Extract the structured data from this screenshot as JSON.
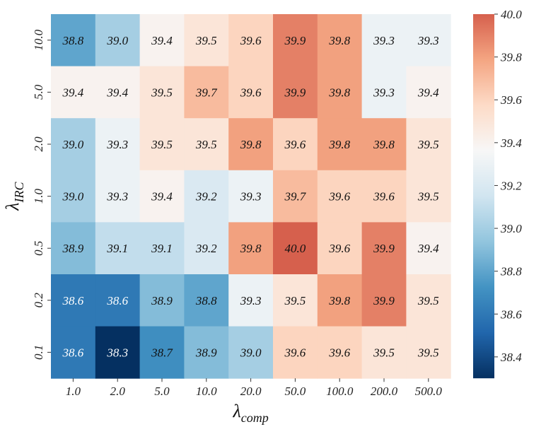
{
  "chart_data": {
    "type": "heatmap",
    "xlabel": "λ",
    "xlabel_sub": "comp",
    "ylabel": "λ",
    "ylabel_sub": "IRC",
    "x_categories": [
      "1.0",
      "2.0",
      "5.0",
      "10.0",
      "20.0",
      "50.0",
      "100.0",
      "200.0",
      "500.0"
    ],
    "y_categories": [
      "10.0",
      "5.0",
      "2.0",
      "1.0",
      "0.5",
      "0.2",
      "0.1"
    ],
    "values": [
      [
        38.8,
        39.0,
        39.4,
        39.5,
        39.6,
        39.9,
        39.8,
        39.3,
        39.3
      ],
      [
        39.4,
        39.4,
        39.5,
        39.7,
        39.6,
        39.9,
        39.8,
        39.3,
        39.4
      ],
      [
        39.0,
        39.3,
        39.5,
        39.5,
        39.8,
        39.6,
        39.8,
        39.8,
        39.5
      ],
      [
        39.0,
        39.3,
        39.4,
        39.2,
        39.3,
        39.7,
        39.6,
        39.6,
        39.5
      ],
      [
        38.9,
        39.1,
        39.1,
        39.2,
        39.8,
        40.0,
        39.6,
        39.9,
        39.4
      ],
      [
        38.6,
        38.6,
        38.9,
        38.8,
        39.3,
        39.5,
        39.8,
        39.9,
        39.5
      ],
      [
        38.6,
        38.3,
        38.7,
        38.9,
        39.0,
        39.6,
        39.6,
        39.5,
        39.5
      ]
    ],
    "colormap": "RdBu_r",
    "vmin": 38.3,
    "vmax": 40.0,
    "colorbar_ticks": [
      "38.4",
      "38.6",
      "38.8",
      "39.0",
      "39.2",
      "39.4",
      "39.6",
      "39.8",
      "40.0"
    ],
    "colors": {
      "stops": [
        "#053061",
        "#2166ac",
        "#4393c3",
        "#92c5de",
        "#d1e5f0",
        "#f7f7f7",
        "#fddbc7",
        "#f4a582",
        "#d6604d"
      ]
    }
  }
}
